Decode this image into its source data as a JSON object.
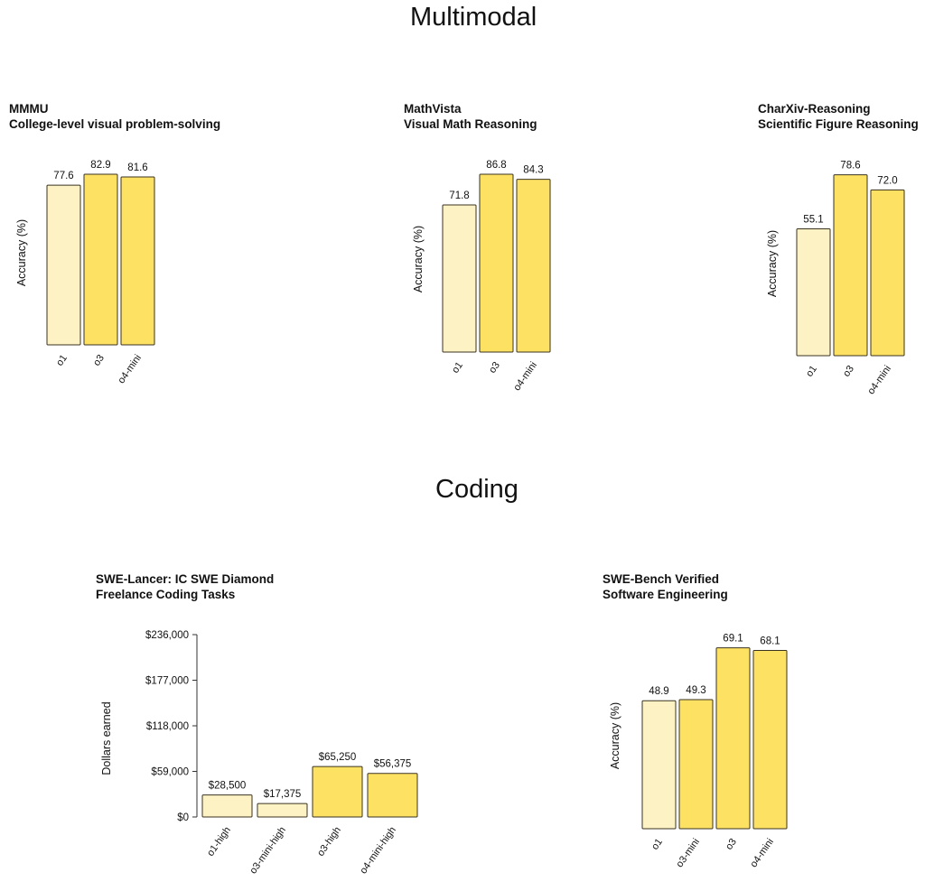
{
  "sections": {
    "multimodal": "Multimodal",
    "coding": "Coding"
  },
  "colors": {
    "bar_light": "#fdf2c4",
    "bar_strong": "#fde163",
    "bar_stroke": "#3a3320",
    "text": "#111111"
  },
  "chart_data": [
    {
      "id": "mmmu",
      "type": "bar",
      "title": "MMMU",
      "subtitle": "College-level visual problem-solving",
      "ylabel": "Accuracy (%)",
      "categories": [
        "o1",
        "o3",
        "o4-mini"
      ],
      "values": [
        77.6,
        82.9,
        81.6
      ],
      "value_labels": [
        "77.6",
        "82.9",
        "81.6"
      ],
      "bar_colors": [
        "#fdf2c4",
        "#fde163",
        "#fde163"
      ]
    },
    {
      "id": "mathvista",
      "type": "bar",
      "title": "MathVista",
      "subtitle": "Visual Math Reasoning",
      "ylabel": "Accuracy (%)",
      "categories": [
        "o1",
        "o3",
        "o4-mini"
      ],
      "values": [
        71.8,
        86.8,
        84.3
      ],
      "value_labels": [
        "71.8",
        "86.8",
        "84.3"
      ],
      "bar_colors": [
        "#fdf2c4",
        "#fde163",
        "#fde163"
      ]
    },
    {
      "id": "charxiv",
      "type": "bar",
      "title": "CharXiv-Reasoning",
      "subtitle": "Scientific Figure Reasoning",
      "ylabel": "Accuracy (%)",
      "categories": [
        "o1",
        "o3",
        "o4-mini"
      ],
      "values": [
        55.1,
        78.6,
        72.0
      ],
      "value_labels": [
        "55.1",
        "78.6",
        "72.0"
      ],
      "bar_colors": [
        "#fdf2c4",
        "#fde163",
        "#fde163"
      ]
    },
    {
      "id": "swelancer",
      "type": "bar",
      "title": "SWE-Lancer: IC SWE Diamond",
      "subtitle": "Freelance Coding Tasks",
      "ylabel": "Dollars earned",
      "categories": [
        "o1-high",
        "o3-mini-high",
        "o3-high",
        "o4-mini-high"
      ],
      "values": [
        28500,
        17375,
        65250,
        56375
      ],
      "value_labels": [
        "$28,500",
        "$17,375",
        "$65,250",
        "$56,375"
      ],
      "bar_colors": [
        "#fdf2c4",
        "#fdf2c4",
        "#fde163",
        "#fde163"
      ],
      "ylim": [
        0,
        236000
      ],
      "yticks": [
        0,
        59000,
        118000,
        177000,
        236000
      ],
      "ytick_labels": [
        "$0",
        "$59,000",
        "$118,000",
        "$177,000",
        "$236,000"
      ]
    },
    {
      "id": "swebench",
      "type": "bar",
      "title": "SWE-Bench Verified",
      "subtitle": "Software Engineering",
      "ylabel": "Accuracy (%)",
      "categories": [
        "o1",
        "o3-mini",
        "o3",
        "o4-mini"
      ],
      "values": [
        48.9,
        49.3,
        69.1,
        68.1
      ],
      "value_labels": [
        "48.9",
        "49.3",
        "69.1",
        "68.1"
      ],
      "bar_colors": [
        "#fdf2c4",
        "#fde163",
        "#fde163",
        "#fde163"
      ]
    }
  ]
}
